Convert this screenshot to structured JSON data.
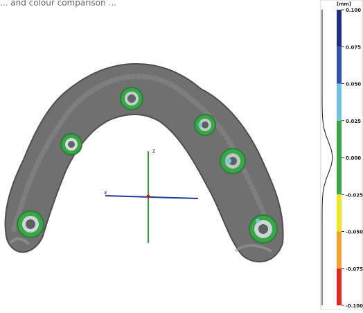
{
  "header": {
    "partial_text": "... and colour comparison ..."
  },
  "scale": {
    "unit": "[mm]",
    "ticks": [
      "0.100",
      "0.075",
      "0.050",
      "0.025",
      "0.000",
      "-0.025",
      "-0.050",
      "-0.075",
      "-0.100"
    ],
    "bands": [
      {
        "color": "#1b2f86"
      },
      {
        "color": "#2f54a8"
      },
      {
        "color": "#6fc3df"
      },
      {
        "color": "#3aa64a"
      },
      {
        "color": "#3aa64a"
      },
      {
        "color": "#f1e623"
      },
      {
        "color": "#f2a22b"
      },
      {
        "color": "#e02a22"
      }
    ]
  },
  "axes": {
    "x_label": "x",
    "z_label": "z"
  }
}
